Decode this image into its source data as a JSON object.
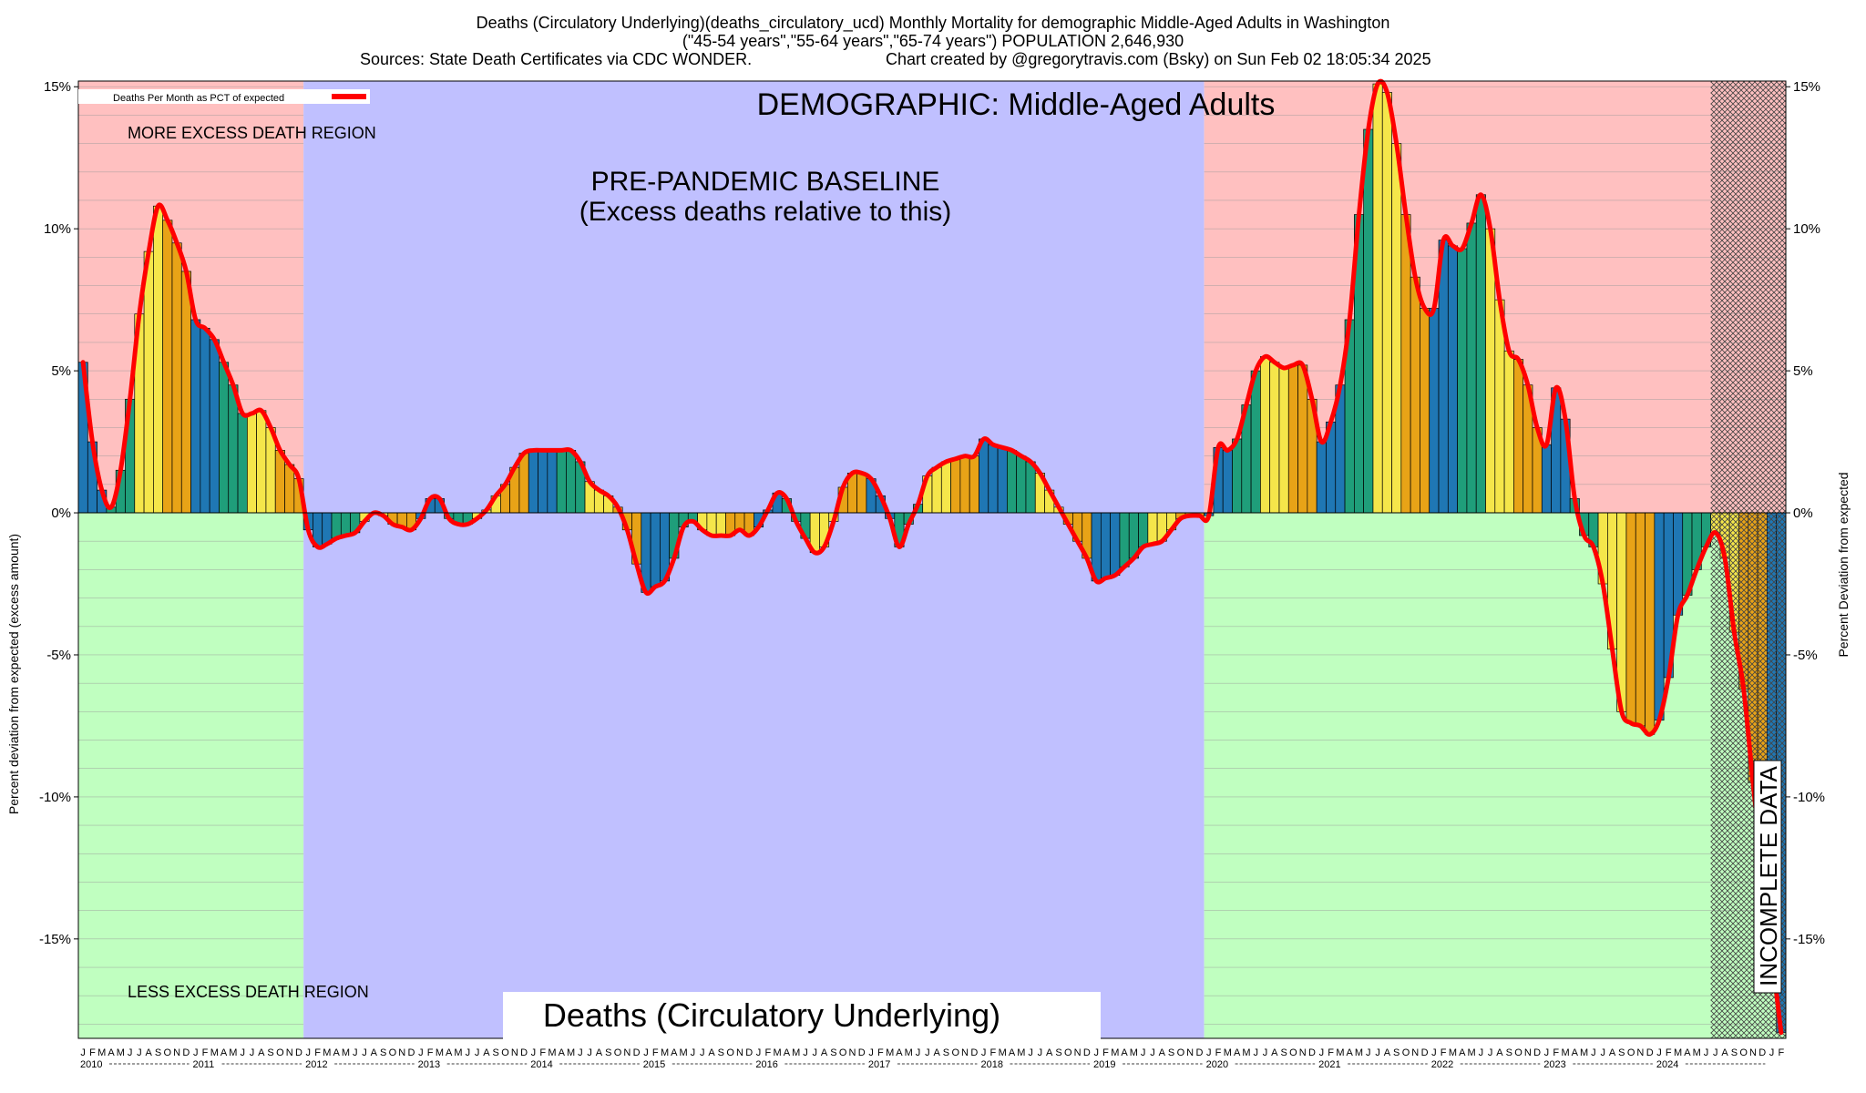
{
  "header": {
    "line1": "Deaths (Circulatory Underlying)(deaths_circulatory_ucd) Monthly Mortality for demographic Middle-Aged Adults in Washington",
    "line2": "(\"45-54 years\",\"55-64 years\",\"65-74 years\") POPULATION 2,646,930",
    "line3_left": "Sources: State Death Certificates via CDC WONDER.",
    "line3_right": "Chart created by @gregorytravis.com (Bsky) on Sun Feb 02 18:05:34 2025"
  },
  "annotations": {
    "demographic": "DEMOGRAPHIC: Middle-Aged Adults",
    "baseline_line1": "PRE-PANDEMIC BASELINE",
    "baseline_line2": "(Excess deaths relative to this)",
    "more_region": "MORE EXCESS DEATH REGION",
    "less_region": "LESS EXCESS DEATH REGION",
    "incomplete": "INCOMPLETE DATA",
    "bottom_title": "Deaths (Circulatory Underlying)"
  },
  "legend": {
    "label": "Deaths Per Month as PCT of expected",
    "color": "#ff0000"
  },
  "colors": {
    "more_region": "#ffc0c0",
    "less_region": "#c0ffc0",
    "baseline_region": "#c0c0ff",
    "bar_palette": [
      "#1f77b4",
      "#1f9e7a",
      "#f5e64a",
      "#e8a317"
    ],
    "line": "#ff0000"
  },
  "chart_data": {
    "type": "bar",
    "title": "Deaths (Circulatory Underlying)",
    "ylabel": "Percent deviation from expected (excess amount)",
    "ylabel_right": "Percent Deviation from expected",
    "ylim": [
      -18.5,
      15.2
    ],
    "yticks": [
      15,
      10,
      5,
      0,
      -5,
      -10,
      -15
    ],
    "ytick_labels": [
      "15%",
      "10%",
      "5%",
      "0%",
      "-5%",
      "-10%",
      "-15%"
    ],
    "month_letters": [
      "J",
      "F",
      "M",
      "A",
      "M",
      "J",
      "J",
      "A",
      "S",
      "O",
      "N",
      "D"
    ],
    "years": [
      "2010",
      "2011",
      "2012",
      "2013",
      "2014",
      "2015",
      "2016",
      "2017",
      "2018",
      "2019",
      "2020",
      "2021",
      "2022",
      "2023",
      "2024"
    ],
    "start": "2010-01",
    "baseline_range": [
      "2012-01",
      "2019-12"
    ],
    "incomplete_from": "2024-07",
    "grid": true,
    "legend_position": "top-left",
    "values": [
      5.3,
      2.5,
      0.8,
      0.2,
      1.5,
      4.0,
      7.0,
      9.2,
      10.8,
      10.3,
      9.5,
      8.5,
      6.8,
      6.5,
      6.1,
      5.3,
      4.5,
      3.5,
      3.5,
      3.6,
      3.0,
      2.2,
      1.7,
      1.2,
      -0.6,
      -1.2,
      -1.1,
      -0.9,
      -0.8,
      -0.7,
      -0.3,
      0.0,
      -0.1,
      -0.4,
      -0.5,
      -0.6,
      -0.2,
      0.5,
      0.5,
      -0.2,
      -0.4,
      -0.4,
      -0.2,
      0.1,
      0.6,
      1.0,
      1.6,
      2.1,
      2.2,
      2.2,
      2.2,
      2.2,
      2.2,
      1.8,
      1.1,
      0.8,
      0.6,
      0.2,
      -0.6,
      -1.8,
      -2.8,
      -2.6,
      -2.4,
      -1.6,
      -0.5,
      -0.3,
      -0.6,
      -0.8,
      -0.8,
      -0.8,
      -0.6,
      -0.8,
      -0.5,
      0.1,
      0.7,
      0.5,
      -0.3,
      -0.9,
      -1.4,
      -1.2,
      -0.3,
      0.9,
      1.4,
      1.4,
      1.2,
      0.6,
      -0.2,
      -1.2,
      -0.4,
      0.3,
      1.3,
      1.6,
      1.8,
      1.9,
      2.0,
      2.0,
      2.6,
      2.4,
      2.3,
      2.2,
      2.0,
      1.8,
      1.4,
      0.8,
      0.2,
      -0.4,
      -1.0,
      -1.6,
      -2.4,
      -2.3,
      -2.2,
      -1.9,
      -1.6,
      -1.2,
      -1.1,
      -1.0,
      -0.6,
      -0.2,
      -0.1,
      -0.1,
      -0.1,
      2.3,
      2.2,
      2.6,
      3.8,
      5.0,
      5.5,
      5.3,
      5.1,
      5.2,
      5.2,
      4.0,
      2.5,
      3.2,
      4.5,
      6.8,
      10.5,
      13.5,
      15.1,
      14.8,
      13.0,
      10.5,
      8.3,
      7.2,
      7.2,
      9.6,
      9.4,
      9.3,
      10.2,
      11.2,
      10.0,
      7.5,
      5.7,
      5.4,
      4.5,
      3.0,
      2.4,
      4.4,
      3.3,
      0.5,
      -0.8,
      -1.2,
      -2.5,
      -4.8,
      -7.0,
      -7.4,
      -7.5,
      -7.8,
      -7.3,
      -5.8,
      -3.6,
      -2.9,
      -2.0,
      -1.2,
      -0.7,
      -1.6,
      -4.2,
      -6.2,
      -9.5,
      -12.6,
      -15.5,
      -18.3
    ]
  }
}
